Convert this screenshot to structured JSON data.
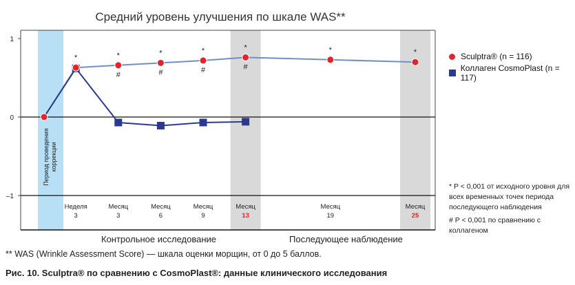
{
  "chart_data": {
    "type": "line",
    "title": "Средний уровень улучшения по шкале WAS**",
    "ylim": [
      -1,
      1
    ],
    "y_ticks": [
      "1",
      "0",
      "–1"
    ],
    "grid": "horizontal",
    "legend_position": "right",
    "correction_period_label": "Период проведения коррекции",
    "x_categories": [
      {
        "top": "Неделя",
        "bottom": "3",
        "highlight": false
      },
      {
        "top": "Месяц",
        "bottom": "3",
        "highlight": false
      },
      {
        "top": "Месяц",
        "bottom": "6",
        "highlight": false
      },
      {
        "top": "Месяц",
        "bottom": "9",
        "highlight": false
      },
      {
        "top": "Месяц",
        "bottom": "13",
        "highlight": true
      },
      {
        "top": "Месяц",
        "bottom": "19",
        "highlight": false
      },
      {
        "top": "Месяц",
        "bottom": "25",
        "highlight": true
      }
    ],
    "series": [
      {
        "name": "Sculptra® (n = 116)",
        "color": "#e3242b",
        "line_color": "#6f8fc9",
        "marker": "circle",
        "x": [
          0,
          0.75,
          1.75,
          2.75,
          3.75,
          4.75,
          6.75,
          8.75
        ],
        "y": [
          0,
          0.63,
          0.66,
          0.69,
          0.72,
          0.76,
          0.73,
          0.7
        ],
        "star": [
          false,
          true,
          true,
          true,
          true,
          true,
          true,
          true
        ],
        "hash": [
          false,
          false,
          true,
          true,
          true,
          true,
          false,
          false
        ]
      },
      {
        "name": "Коллаген CosmoPlast (n = 117)",
        "color": "#2b3a8f",
        "line_color": "#2b3a8f",
        "marker": "square",
        "x": [
          0,
          0.75,
          1.75,
          2.75,
          3.75,
          4.75
        ],
        "y": [
          0,
          0.62,
          -0.07,
          -0.11,
          -0.07,
          -0.06
        ]
      }
    ],
    "phase_labels": [
      "Контрольное исследование",
      "Последующее наблюдение"
    ]
  },
  "legend": {
    "sculptra_label": "Sculptra® (n = 116)",
    "collagen_label": "Коллаген CosmoPlast (n = 117)"
  },
  "notes": {
    "star_note": "* P < 0,001 от исходного уровня для всех временных точек периода последующего наблюдения",
    "hash_note": "# P < 0,001 по сравнению с коллагеном"
  },
  "footnote": "** WAS (Wrinkle Assessment Score) — шкала оценки морщин, от 0 до 5 баллов.",
  "caption": "Рис. 10. Sculptra® по сравнению с CosmoPlast®: данные клинического исследования"
}
